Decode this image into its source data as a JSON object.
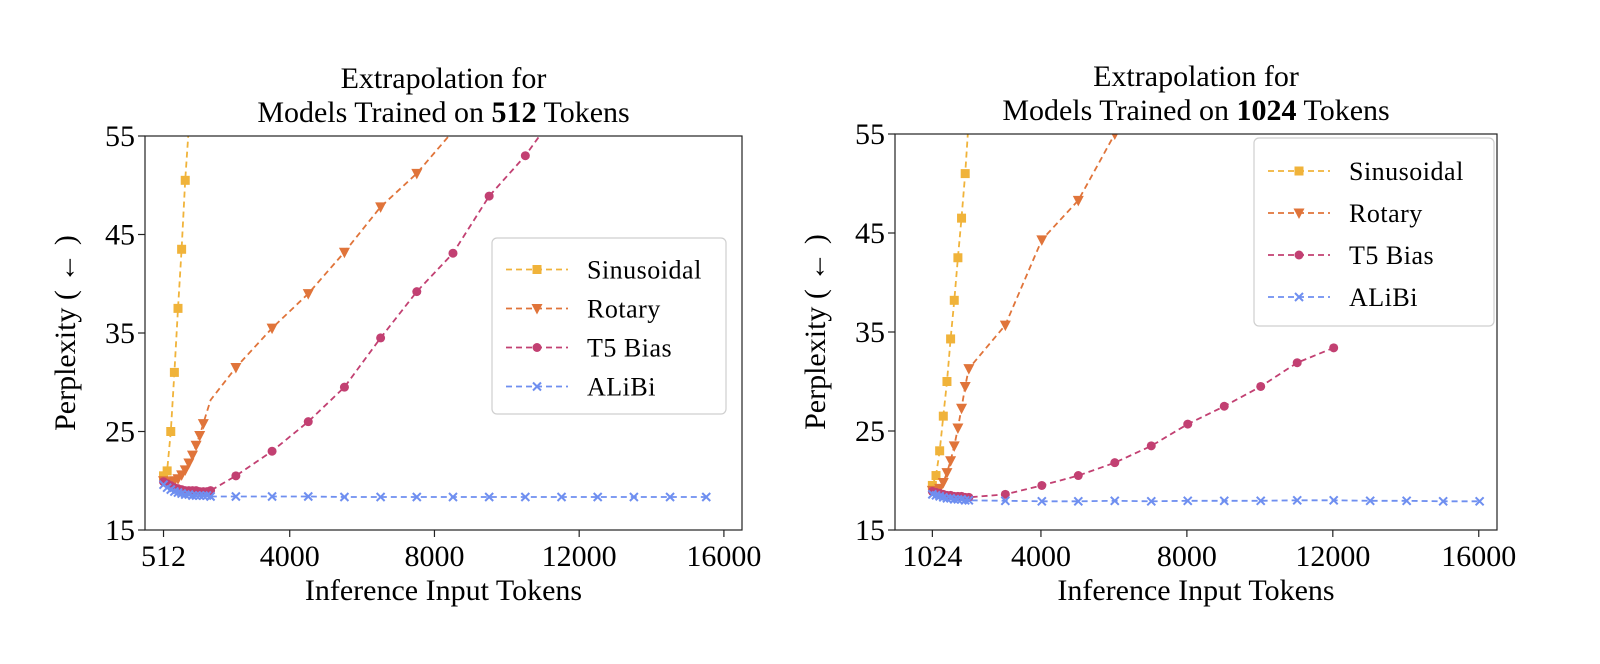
{
  "chart_data": [
    {
      "type": "line",
      "title_line1": "Extrapolation for",
      "title_pre": "Models Trained on ",
      "title_bold": "512",
      "title_post": " Tokens",
      "xlabel": "Inference Input Tokens",
      "ylabel": "Perplexity ( ← )",
      "xlim": [
        0,
        16500
      ],
      "ylim": [
        15,
        55
      ],
      "xticks": [
        512,
        4000,
        8000,
        12000,
        16000
      ],
      "xtick_labels": [
        "512",
        "4000",
        "8000",
        "12000",
        "16000"
      ],
      "yticks": [
        15,
        25,
        35,
        45,
        55
      ],
      "ytick_labels": [
        "15",
        "25",
        "35",
        "45",
        "55"
      ],
      "legend_position": "center-right",
      "series": [
        {
          "name": "Sinusoidal",
          "color": "#f0b33a",
          "marker": "square",
          "x": [
            512,
            612,
            712,
            812,
            912,
            1012,
            1112,
            1212,
            1312
          ],
          "y": [
            20.5,
            21.0,
            25.0,
            31.0,
            37.5,
            43.5,
            50.5,
            56.0,
            62.0
          ]
        },
        {
          "name": "Rotary",
          "color": "#e0743a",
          "marker": "triangle-down",
          "x": [
            512,
            612,
            712,
            812,
            912,
            1012,
            1112,
            1212,
            1312,
            1412,
            1512,
            1612,
            1712,
            1812,
            2512,
            3512,
            4512,
            5512,
            6512,
            7512,
            8512
          ],
          "y": [
            20.0,
            19.9,
            19.9,
            20.0,
            20.2,
            20.6,
            21.1,
            21.8,
            22.6,
            23.6,
            24.6,
            25.8,
            27.0,
            28.2,
            31.5,
            35.5,
            39.0,
            43.2,
            47.8,
            51.2,
            55.5
          ],
          "show_marker": [
            true,
            true,
            true,
            true,
            true,
            true,
            true,
            true,
            true,
            true,
            true,
            true,
            false,
            false,
            true,
            true,
            true,
            true,
            true,
            true,
            false
          ]
        },
        {
          "name": "T5 Bias",
          "color": "#c24072",
          "marker": "circle",
          "x": [
            512,
            612,
            712,
            812,
            912,
            1012,
            1112,
            1212,
            1312,
            1412,
            1512,
            1612,
            1712,
            1812,
            2512,
            3512,
            4512,
            5512,
            6512,
            7512,
            8512,
            9512,
            10512,
            11000
          ],
          "y": [
            19.9,
            19.7,
            19.5,
            19.3,
            19.2,
            19.1,
            19.0,
            19.0,
            19.0,
            19.0,
            18.9,
            18.9,
            18.9,
            19.0,
            20.5,
            23.0,
            26.0,
            29.5,
            34.5,
            39.2,
            43.1,
            48.9,
            53.0,
            55.5
          ],
          "show_marker": [
            true,
            true,
            true,
            true,
            true,
            true,
            true,
            true,
            true,
            true,
            true,
            true,
            true,
            true,
            true,
            true,
            true,
            true,
            true,
            true,
            true,
            true,
            true,
            false
          ]
        },
        {
          "name": "ALiBi",
          "color": "#6f8ff0",
          "marker": "x",
          "x": [
            512,
            612,
            712,
            812,
            912,
            1012,
            1112,
            1212,
            1312,
            1412,
            1512,
            1612,
            1712,
            1812,
            2512,
            3512,
            4512,
            5512,
            6512,
            7512,
            8512,
            9512,
            10512,
            11512,
            12512,
            13512,
            14512,
            15512
          ],
          "y": [
            19.6,
            19.3,
            19.1,
            18.9,
            18.8,
            18.7,
            18.6,
            18.6,
            18.5,
            18.5,
            18.5,
            18.5,
            18.5,
            18.4,
            18.4,
            18.4,
            18.4,
            18.35,
            18.35,
            18.35,
            18.35,
            18.35,
            18.35,
            18.35,
            18.35,
            18.35,
            18.35,
            18.35
          ]
        }
      ]
    },
    {
      "type": "line",
      "title_line1": "Extrapolation for",
      "title_pre": "Models Trained on ",
      "title_bold": "1024",
      "title_post": " Tokens",
      "xlabel": "Inference Input Tokens",
      "ylabel": "Perplexity ( ← )",
      "xlim": [
        0,
        16500
      ],
      "ylim": [
        15,
        55
      ],
      "xticks": [
        1024,
        4000,
        8000,
        12000,
        16000
      ],
      "xtick_labels": [
        "1024",
        "4000",
        "8000",
        "12000",
        "16000"
      ],
      "yticks": [
        15,
        25,
        35,
        45,
        55
      ],
      "ytick_labels": [
        "15",
        "25",
        "35",
        "45",
        "55"
      ],
      "legend_position": "top-right",
      "series": [
        {
          "name": "Sinusoidal",
          "color": "#f0b33a",
          "marker": "square",
          "x": [
            1024,
            1124,
            1224,
            1324,
            1424,
            1524,
            1624,
            1724,
            1824,
            1924,
            2024
          ],
          "y": [
            19.5,
            20.5,
            23.0,
            26.5,
            30.0,
            34.3,
            38.2,
            42.5,
            46.5,
            51.0,
            56.5
          ]
        },
        {
          "name": "Rotary",
          "color": "#e0743a",
          "marker": "triangle-down",
          "x": [
            1024,
            1124,
            1224,
            1324,
            1424,
            1524,
            1624,
            1724,
            1824,
            1924,
            2024,
            3024,
            4024,
            5024,
            6024
          ],
          "y": [
            19.0,
            18.8,
            19.2,
            19.8,
            20.8,
            22.0,
            23.5,
            25.3,
            27.3,
            29.5,
            31.3,
            35.7,
            44.3,
            48.3,
            55.0
          ]
        },
        {
          "name": "T5 Bias",
          "color": "#c24072",
          "marker": "circle",
          "x": [
            1024,
            1124,
            1224,
            1324,
            1424,
            1524,
            1624,
            1724,
            1824,
            1924,
            2024,
            3024,
            4024,
            5024,
            6024,
            7024,
            8024,
            9024,
            10024,
            11024,
            12024
          ],
          "y": [
            18.9,
            18.8,
            18.7,
            18.6,
            18.5,
            18.5,
            18.4,
            18.4,
            18.4,
            18.3,
            18.3,
            18.6,
            19.5,
            20.5,
            21.8,
            23.5,
            25.7,
            27.5,
            29.5,
            31.9,
            33.4
          ]
        },
        {
          "name": "ALiBi",
          "color": "#6f8ff0",
          "marker": "x",
          "x": [
            1024,
            1124,
            1224,
            1324,
            1424,
            1524,
            1624,
            1724,
            1824,
            1924,
            2024,
            3024,
            4024,
            5024,
            6024,
            7024,
            8024,
            9024,
            10024,
            11024,
            12024,
            13024,
            14024,
            15024,
            16024
          ],
          "y": [
            18.6,
            18.5,
            18.4,
            18.3,
            18.2,
            18.2,
            18.1,
            18.1,
            18.1,
            18.0,
            18.0,
            17.95,
            17.9,
            17.9,
            17.95,
            17.9,
            17.95,
            17.95,
            17.95,
            18.0,
            18.0,
            17.95,
            17.95,
            17.9,
            17.9
          ]
        }
      ]
    }
  ]
}
